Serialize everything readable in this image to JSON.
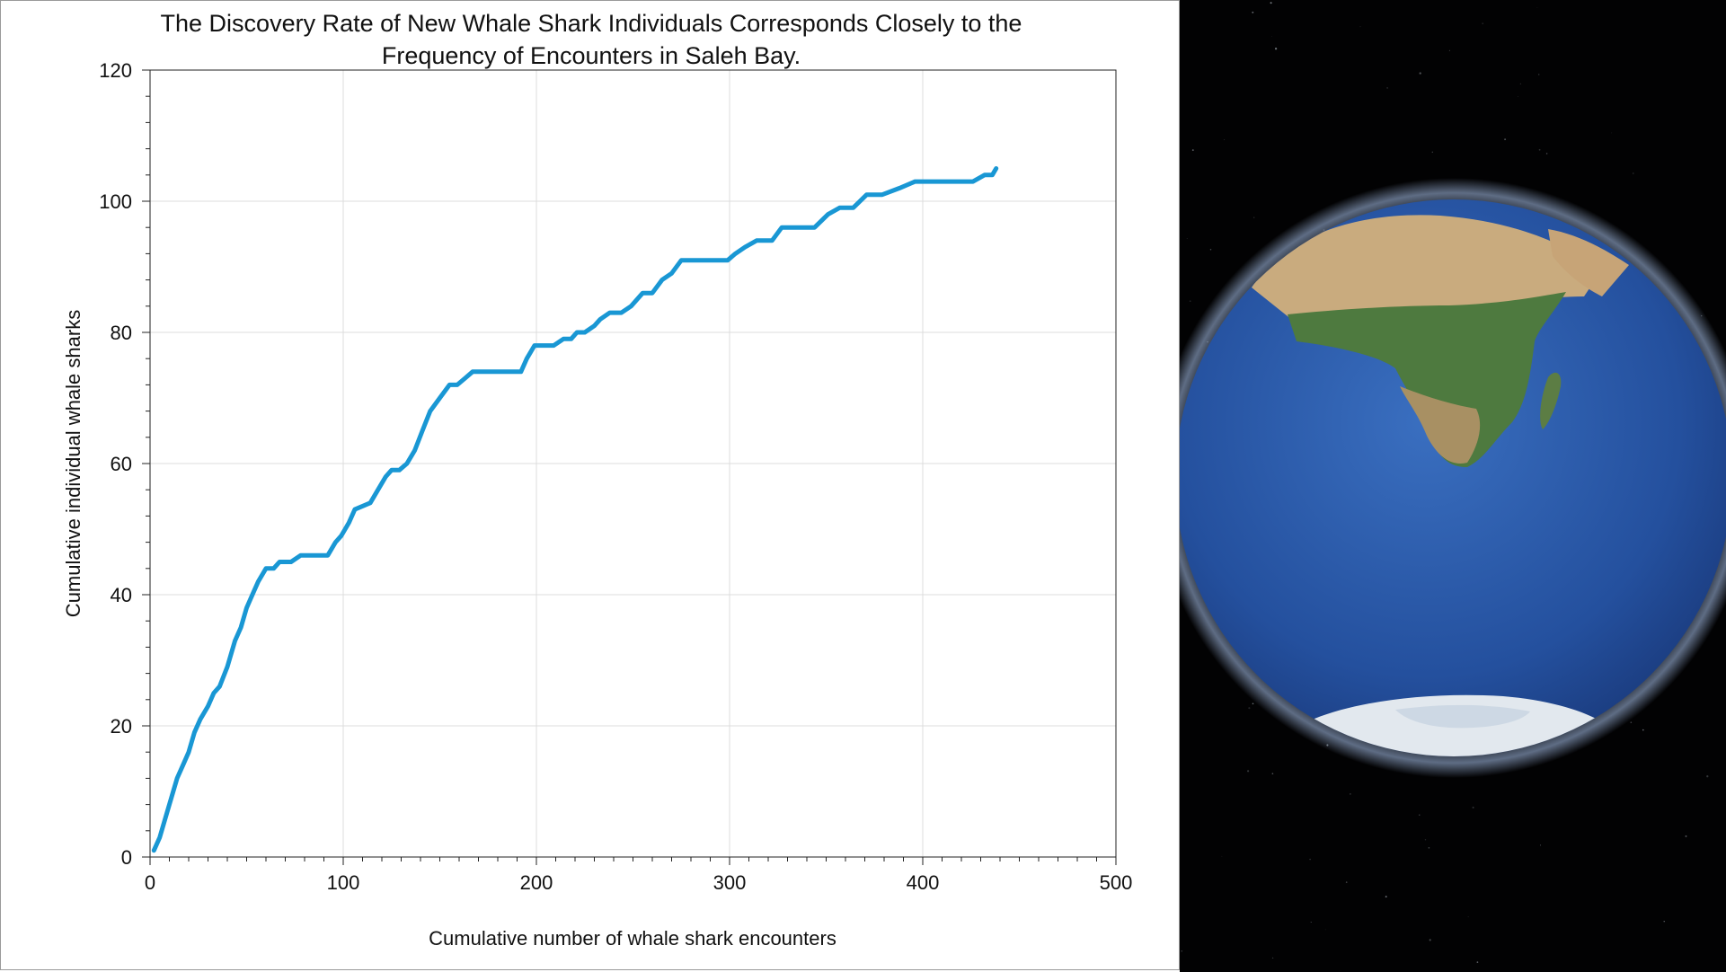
{
  "chart_data": {
    "type": "line",
    "title_lines": [
      "The Discovery Rate of New Whale Shark Individuals Corresponds Closely to the",
      "Frequency of Encounters in Saleh Bay."
    ],
    "xlabel": "Cumulative number of whale shark encounters",
    "ylabel": "Cumulative individual whale sharks",
    "xlim": [
      0,
      500
    ],
    "ylim": [
      0,
      120
    ],
    "xticks": [
      0,
      100,
      200,
      300,
      400,
      500
    ],
    "yticks": [
      0,
      20,
      40,
      60,
      80,
      100,
      120
    ],
    "grid": true,
    "legend": "none",
    "series": [
      {
        "color": "#1997d4",
        "x": [
          2,
          5,
          8,
          10,
          12,
          14,
          17,
          20,
          23,
          26,
          30,
          33,
          36,
          40,
          44,
          47,
          50,
          53,
          56,
          60,
          62,
          64,
          67,
          70,
          73,
          78,
          86,
          92,
          96,
          99,
          103,
          106,
          114,
          118,
          122,
          125,
          129,
          133,
          137,
          141,
          145,
          150,
          155,
          159,
          163,
          167,
          173,
          192,
          195,
          199,
          204,
          209,
          214,
          218,
          221,
          225,
          230,
          233,
          238,
          244,
          249,
          255,
          260,
          265,
          270,
          275,
          287,
          299,
          303,
          308,
          314,
          322,
          327,
          335,
          344,
          351,
          357,
          364,
          371,
          379,
          388,
          396,
          412,
          426,
          432,
          436,
          438
        ],
        "y": [
          1,
          3,
          6,
          8,
          10,
          12,
          14,
          16,
          19,
          21,
          23,
          25,
          26,
          29,
          33,
          35,
          38,
          40,
          42,
          44,
          44,
          44,
          45,
          45,
          45,
          46,
          46,
          46,
          48,
          49,
          51,
          53,
          54,
          56,
          58,
          59,
          59,
          60,
          62,
          65,
          68,
          70,
          72,
          72,
          73,
          74,
          74,
          74,
          76,
          78,
          78,
          78,
          79,
          79,
          80,
          80,
          81,
          82,
          83,
          83,
          84,
          86,
          86,
          88,
          89,
          91,
          91,
          91,
          92,
          93,
          94,
          94,
          96,
          96,
          96,
          98,
          99,
          99,
          101,
          101,
          102,
          103,
          103,
          103,
          104,
          104,
          105
        ]
      }
    ]
  },
  "globe": {
    "ocean_color": "#2a56a8",
    "land_color": "#4e7a3f",
    "desert_color": "#c9ab7e",
    "ice_color": "#e2e8ee",
    "glow_color": "#aac4ee",
    "space_color": "#020203"
  }
}
